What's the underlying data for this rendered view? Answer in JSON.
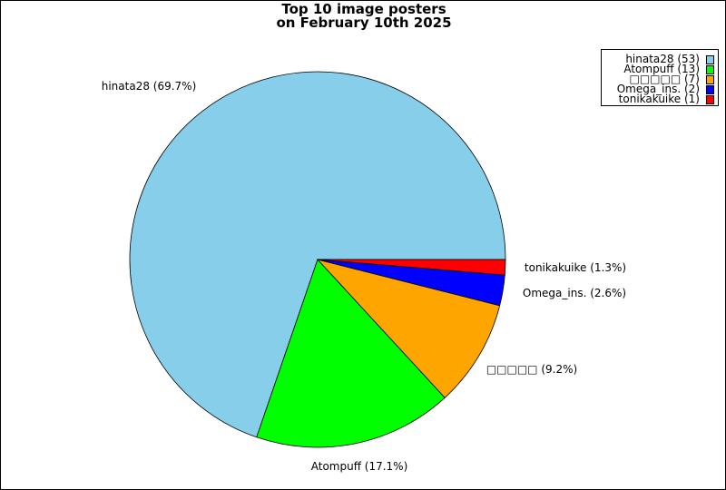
{
  "chart_data": {
    "type": "pie",
    "title_lines": [
      "Top 10 image posters",
      "on February 10th 2025"
    ],
    "slices": [
      {
        "label": "hinata28",
        "value": 53,
        "percent": "69.7%",
        "color": "#87CEEB"
      },
      {
        "label": "Atompuff",
        "value": 13,
        "percent": "17.1%",
        "color": "#00FF00"
      },
      {
        "label": "□□□□□",
        "value": 7,
        "percent": "9.2%",
        "color": "#FFA500"
      },
      {
        "label": "Omega_ins.",
        "value": 2,
        "percent": "2.6%",
        "color": "#0000FF"
      },
      {
        "label": "tonikakuike",
        "value": 1,
        "percent": "1.3%",
        "color": "#FF0000"
      }
    ],
    "start_angle": "right (3 o'clock)",
    "direction": "counterclockwise",
    "legend_position": "top-right"
  }
}
